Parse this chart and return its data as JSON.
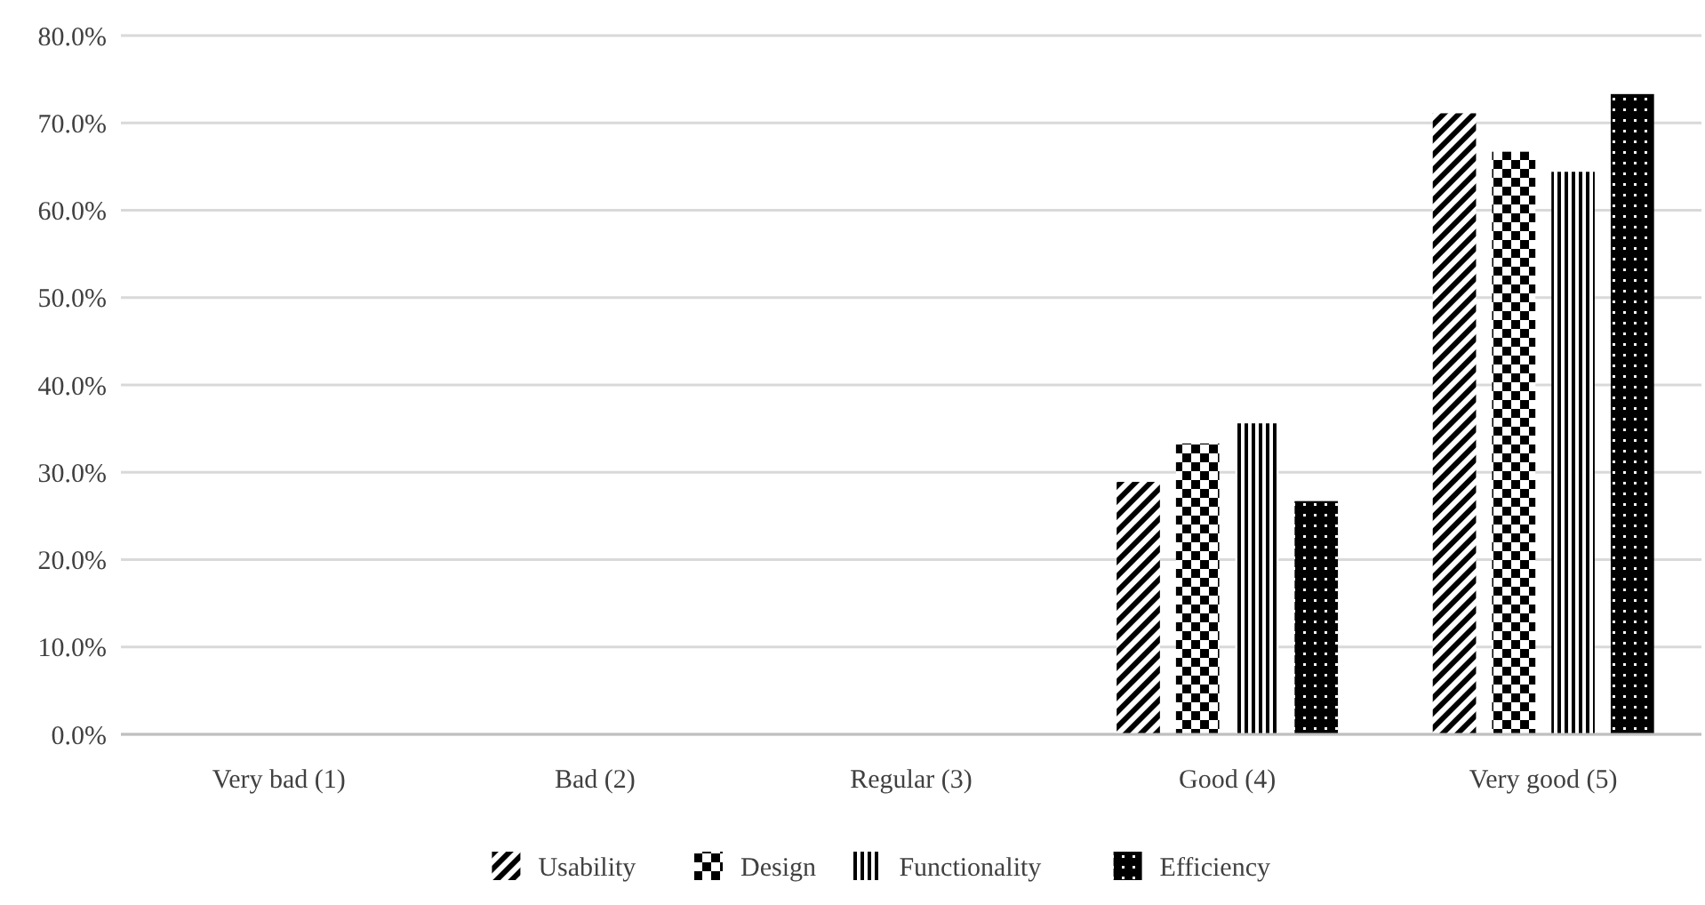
{
  "chart_data": {
    "type": "bar",
    "categories": [
      "Very bad (1)",
      "Bad (2)",
      "Regular (3)",
      "Good (4)",
      "Very good (5)"
    ],
    "series": [
      {
        "name": "Usability",
        "color": "#000000",
        "values": [
          0,
          0,
          0,
          28.9,
          71.1
        ]
      },
      {
        "name": "Design",
        "color": "#000000",
        "values": [
          0,
          0,
          0,
          33.3,
          66.7
        ]
      },
      {
        "name": "Functionality",
        "color": "#000000",
        "values": [
          0,
          0,
          0,
          35.6,
          64.4
        ]
      },
      {
        "name": "Efficiency",
        "color": "#000000",
        "values": [
          0,
          0,
          0,
          26.7,
          73.3
        ]
      }
    ],
    "ylim": [
      0,
      80
    ],
    "yticks": [
      {
        "value": 0,
        "label": "0.0%"
      },
      {
        "value": 10,
        "label": "10.0%"
      },
      {
        "value": 20,
        "label": "20.0%"
      },
      {
        "value": 30,
        "label": "30.0%"
      },
      {
        "value": 40,
        "label": "40.0%"
      },
      {
        "value": 50,
        "label": "50.0%"
      },
      {
        "value": 60,
        "label": "60.0%"
      },
      {
        "value": 70,
        "label": "70.0%"
      },
      {
        "value": 80,
        "label": "80.0%"
      }
    ],
    "grid": "y",
    "legend": "bottom"
  }
}
